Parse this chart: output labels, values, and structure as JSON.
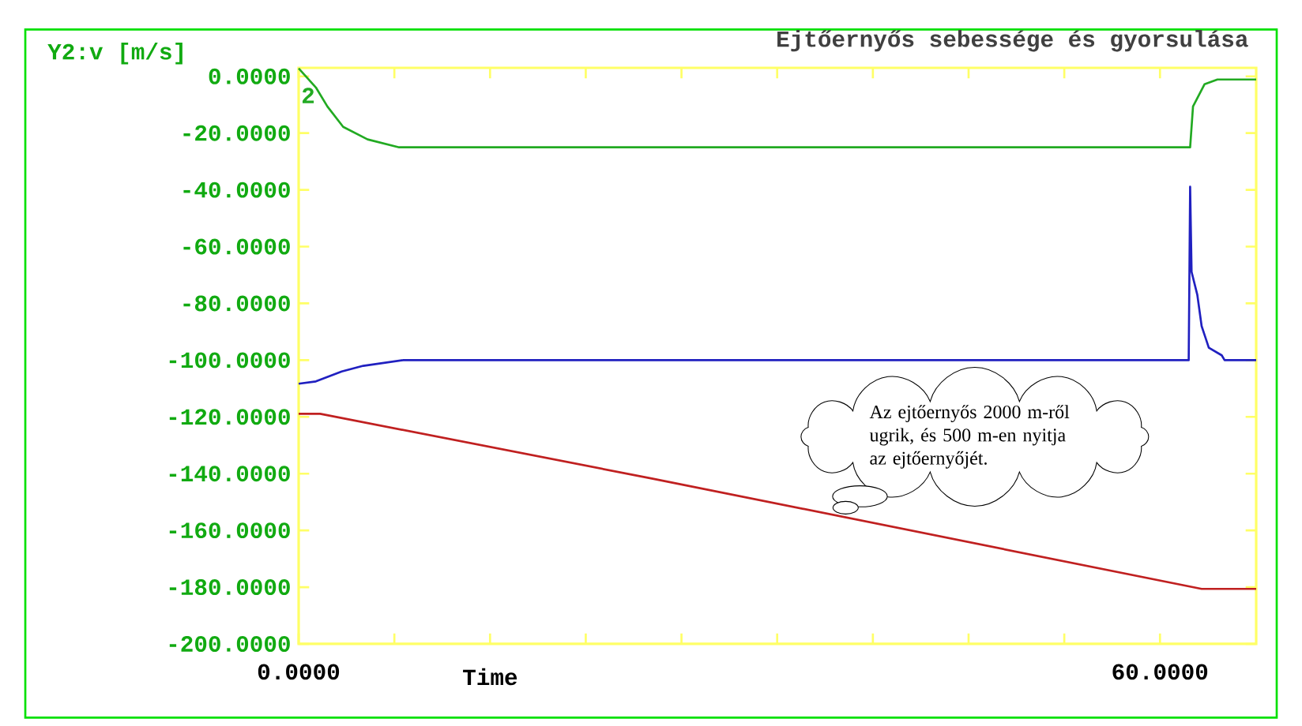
{
  "chart_data": {
    "type": "line",
    "title": "Ejtőernyős sebessége és gyorsulása",
    "xlabel": "Time",
    "ylabel": "Y2:v [m/s]",
    "xlim": [
      0,
      66.7
    ],
    "ylim": [
      -200,
      3
    ],
    "xticks": [
      {
        "value": 0,
        "label": "0.0000"
      },
      {
        "value": 6.667,
        "label": null
      },
      {
        "value": 13.333,
        "label": null
      },
      {
        "value": 20,
        "label": null
      },
      {
        "value": 26.667,
        "label": null
      },
      {
        "value": 33.333,
        "label": null
      },
      {
        "value": 40,
        "label": null
      },
      {
        "value": 46.667,
        "label": null
      },
      {
        "value": 53.333,
        "label": null
      },
      {
        "value": 60,
        "label": "60.0000"
      }
    ],
    "yticks": [
      {
        "value": 0,
        "label": "0.0000"
      },
      {
        "value": -20,
        "label": "-20.0000"
      },
      {
        "value": -40,
        "label": "-40.0000"
      },
      {
        "value": -60,
        "label": "-60.0000"
      },
      {
        "value": -80,
        "label": "-80.0000"
      },
      {
        "value": -100,
        "label": "-100.0000"
      },
      {
        "value": -120,
        "label": "-120.0000"
      },
      {
        "value": -140,
        "label": "-140.0000"
      },
      {
        "value": -160,
        "label": "-160.0000"
      },
      {
        "value": -180,
        "label": "-180.0000"
      },
      {
        "value": -200,
        "label": "-200.0000"
      }
    ],
    "marker": "none",
    "line_style": "solid",
    "series": [
      {
        "name": "2",
        "color": "#22aa22",
        "x": [
          0,
          1.2,
          2.0,
          3.1,
          4.8,
          7.0,
          62.1,
          62.3,
          63.1,
          64.0,
          66.7
        ],
        "values": [
          2.8,
          -3.9,
          -10.6,
          -17.8,
          -22.2,
          -25,
          -25,
          -10.6,
          -2.8,
          -1.1,
          -1.1
        ]
      },
      {
        "color": "#2020c0",
        "x": [
          0,
          1.2,
          3.0,
          4.5,
          7.3,
          62.0,
          62.1,
          62.2,
          62.6,
          62.9,
          63.4,
          64.3,
          64.5,
          66.7
        ],
        "values": [
          -108.3,
          -107.5,
          -104,
          -102,
          -100,
          -100,
          -38.9,
          -68.9,
          -77,
          -88,
          -95.6,
          -98.3,
          -100,
          -100
        ]
      },
      {
        "color": "#c02020",
        "x": [
          0,
          1.5,
          24.6,
          62.9,
          66.7
        ],
        "values": [
          -118.9,
          -118.9,
          -141.7,
          -180.6,
          -180.6
        ]
      }
    ],
    "annotations": [
      "Az ejtőernyős 2000 m-ről ugrik, és 500 m-en nyitja az ejtőernyőjét."
    ]
  }
}
